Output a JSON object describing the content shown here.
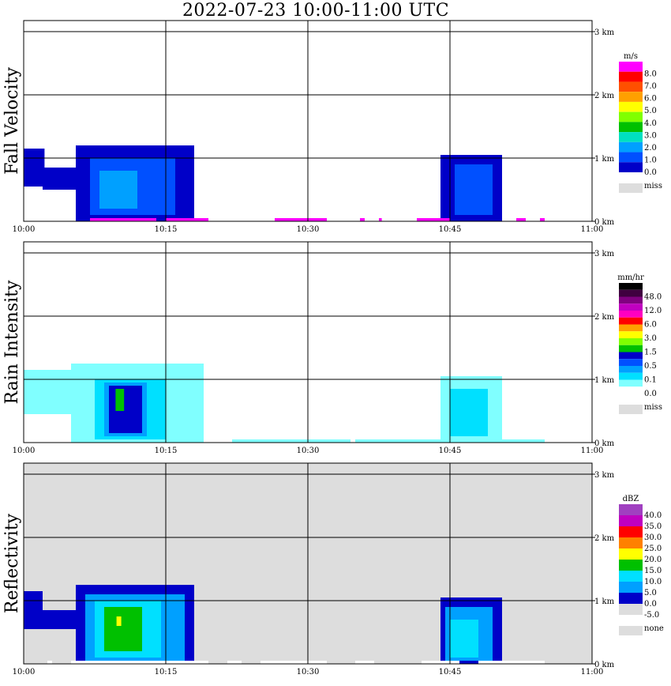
{
  "title": "2022-07-23  10:00-11:00 UTC",
  "chart_data": [
    {
      "type": "heatmap",
      "title": "Fall Velocity",
      "xticks": [
        "10:00",
        "10:15",
        "10:30",
        "10:45",
        "11:00"
      ],
      "yticks": [
        "0 km",
        "1 km",
        "2 km",
        "3 km"
      ],
      "xlim": [
        0,
        60
      ],
      "ylim": [
        0,
        3.5
      ],
      "colorbar": {
        "unit": "m/s",
        "colors": [
          "#0000c8",
          "#0050ff",
          "#00a0ff",
          "#00e0c0",
          "#00c000",
          "#80ff00",
          "#ffff00",
          "#ffa000",
          "#ff5000",
          "#ff0000",
          "#ff00ff"
        ],
        "labels": [
          "0.0",
          "1.0",
          "2.0",
          "3.0",
          "4.0",
          "5.0",
          "6.0",
          "7.0",
          "8.0"
        ],
        "missing_label": "miss"
      },
      "background": "#ffffff",
      "regions": [
        {
          "t0": 0,
          "t1": 2.2,
          "h0": 0.55,
          "h1": 1.15,
          "color": "#0000c8"
        },
        {
          "t0": 2,
          "t1": 6,
          "h0": 0.5,
          "h1": 0.85,
          "color": "#0000c8"
        },
        {
          "t0": 5.5,
          "t1": 18,
          "h0": 0.0,
          "h1": 1.2,
          "color": "#0000c8"
        },
        {
          "t0": 7,
          "t1": 16,
          "h0": 0.1,
          "h1": 1.0,
          "color": "#0050ff"
        },
        {
          "t0": 8,
          "t1": 12,
          "h0": 0.2,
          "h1": 0.8,
          "color": "#00a0ff"
        },
        {
          "t0": 44,
          "t1": 50.5,
          "h0": 0.0,
          "h1": 1.05,
          "color": "#0000c8"
        },
        {
          "t0": 45.5,
          "t1": 49.5,
          "h0": 0.1,
          "h1": 0.9,
          "color": "#0050ff"
        }
      ],
      "surface_strip": {
        "color": "#ff00ff",
        "segments": [
          [
            7,
            14
          ],
          [
            15,
            19.5
          ],
          [
            26.5,
            32
          ],
          [
            35.5,
            36
          ],
          [
            37.5,
            37.8
          ],
          [
            41.5,
            45
          ],
          [
            52,
            53
          ],
          [
            54.5,
            55
          ]
        ]
      }
    },
    {
      "type": "heatmap",
      "title": "Rain Intensity",
      "xticks": [
        "10:00",
        "10:15",
        "10:30",
        "10:45",
        "11:00"
      ],
      "yticks": [
        "0 km",
        "1 km",
        "2 km",
        "3 km"
      ],
      "xlim": [
        0,
        60
      ],
      "ylim": [
        0,
        3.5
      ],
      "colorbar": {
        "unit": "mm/hr",
        "colors": [
          "#ffffff",
          "#80ffff",
          "#00e0ff",
          "#00a0ff",
          "#0050ff",
          "#0000c8",
          "#00c000",
          "#80ff00",
          "#ffff00",
          "#ffa000",
          "#ff0000",
          "#ff00c0",
          "#c000c0",
          "#800080",
          "#400040",
          "#000000"
        ],
        "labels": [
          "0.0",
          "0.1",
          "0.5",
          "1.5",
          "3.0",
          "6.0",
          "12.0",
          "48.0"
        ],
        "missing_label": "miss"
      },
      "background": "#ffffff",
      "regions": [
        {
          "t0": 0,
          "t1": 8,
          "h0": 0.45,
          "h1": 1.15,
          "color": "#80ffff"
        },
        {
          "t0": 5,
          "t1": 19,
          "h0": 0.0,
          "h1": 1.25,
          "color": "#80ffff"
        },
        {
          "t0": 7.5,
          "t1": 15,
          "h0": 0.05,
          "h1": 1.0,
          "color": "#00e0ff"
        },
        {
          "t0": 8.5,
          "t1": 13,
          "h0": 0.1,
          "h1": 0.95,
          "color": "#00a0ff"
        },
        {
          "t0": 9,
          "t1": 12.5,
          "h0": 0.15,
          "h1": 0.9,
          "color": "#0000c8"
        },
        {
          "t0": 9.7,
          "t1": 10.6,
          "h0": 0.5,
          "h1": 0.85,
          "color": "#00c000"
        },
        {
          "t0": 44,
          "t1": 50.5,
          "h0": 0.0,
          "h1": 1.05,
          "color": "#80ffff"
        },
        {
          "t0": 45,
          "t1": 49,
          "h0": 0.1,
          "h1": 0.85,
          "color": "#00e0ff"
        }
      ],
      "surface_strip": {
        "color": "#80ffff",
        "segments": [
          [
            7,
            19
          ],
          [
            22,
            34.5
          ],
          [
            35,
            45
          ],
          [
            50,
            55
          ]
        ]
      }
    },
    {
      "type": "heatmap",
      "title": "Reflectivity",
      "xticks": [
        "10:00",
        "10:15",
        "10:30",
        "10:45",
        "11:00"
      ],
      "yticks": [
        "0 km",
        "1 km",
        "2 km",
        "3 km"
      ],
      "xlim": [
        0,
        60
      ],
      "ylim": [
        0,
        3.5
      ],
      "colorbar": {
        "unit": "dBZ",
        "colors": [
          "#dddddd",
          "#0000c8",
          "#00a0ff",
          "#00e0ff",
          "#00c000",
          "#ffff00",
          "#ff8000",
          "#ff0000",
          "#c000c0",
          "#a040c0"
        ],
        "labels": [
          "40.0",
          "35.0",
          "30.0",
          "25.0",
          "20.0",
          "15.0",
          "10.0",
          "5.0",
          "0.0",
          "-5.0"
        ],
        "missing_label": "none"
      },
      "background": "#dddddd",
      "regions": [
        {
          "t0": 0,
          "t1": 2,
          "h0": 0.55,
          "h1": 1.15,
          "color": "#0000c8"
        },
        {
          "t0": 2,
          "t1": 5.5,
          "h0": 0.55,
          "h1": 0.85,
          "color": "#0000c8"
        },
        {
          "t0": 5.5,
          "t1": 18,
          "h0": 0.0,
          "h1": 1.25,
          "color": "#0000c8"
        },
        {
          "t0": 6.5,
          "t1": 17,
          "h0": 0.05,
          "h1": 1.1,
          "color": "#00a0ff"
        },
        {
          "t0": 7.5,
          "t1": 14.5,
          "h0": 0.1,
          "h1": 1.0,
          "color": "#00e0ff"
        },
        {
          "t0": 8.5,
          "t1": 12.5,
          "h0": 0.2,
          "h1": 0.9,
          "color": "#00c000"
        },
        {
          "t0": 9.8,
          "t1": 10.3,
          "h0": 0.6,
          "h1": 0.75,
          "color": "#ffff00"
        },
        {
          "t0": 44,
          "t1": 50.5,
          "h0": 0.0,
          "h1": 1.05,
          "color": "#0000c8"
        },
        {
          "t0": 44.5,
          "t1": 49.5,
          "h0": 0.05,
          "h1": 0.9,
          "color": "#00a0ff"
        },
        {
          "t0": 45,
          "t1": 48,
          "h0": 0.1,
          "h1": 0.7,
          "color": "#00e0ff"
        }
      ],
      "surface_strip": {
        "color": "#ffffff",
        "segments": [
          [
            2.5,
            3
          ],
          [
            5,
            19.5
          ],
          [
            21.5,
            23
          ],
          [
            25,
            32
          ],
          [
            35,
            37
          ],
          [
            42,
            46
          ],
          [
            48,
            55
          ]
        ]
      }
    }
  ]
}
